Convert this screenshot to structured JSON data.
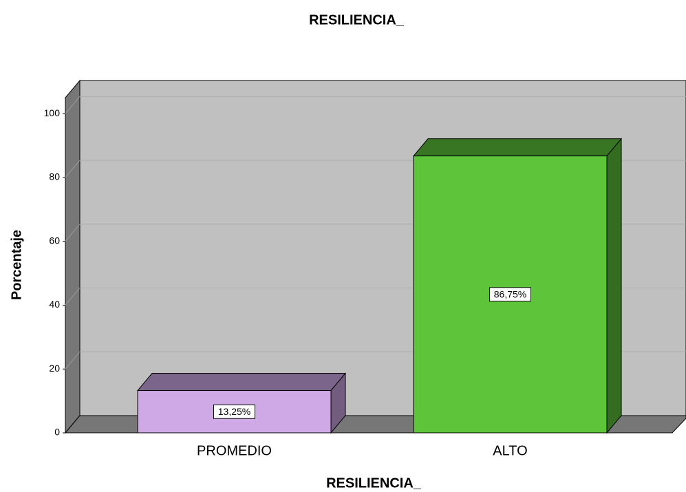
{
  "chart_data": {
    "type": "bar3d",
    "title": "RESILIENCIA_",
    "x_label": "RESILIENCIA_",
    "y_label": "Porcentaje",
    "categories": [
      "PROMEDIO",
      "ALTO"
    ],
    "values": [
      13.25,
      86.75
    ],
    "value_labels": [
      "13,25%",
      "86,75%"
    ],
    "colors": [
      "#cfa9e6",
      "#5ec43a"
    ],
    "ylim": [
      0,
      105
    ],
    "yticks": [
      0,
      20,
      40,
      60,
      80,
      100
    ],
    "grid": true
  }
}
